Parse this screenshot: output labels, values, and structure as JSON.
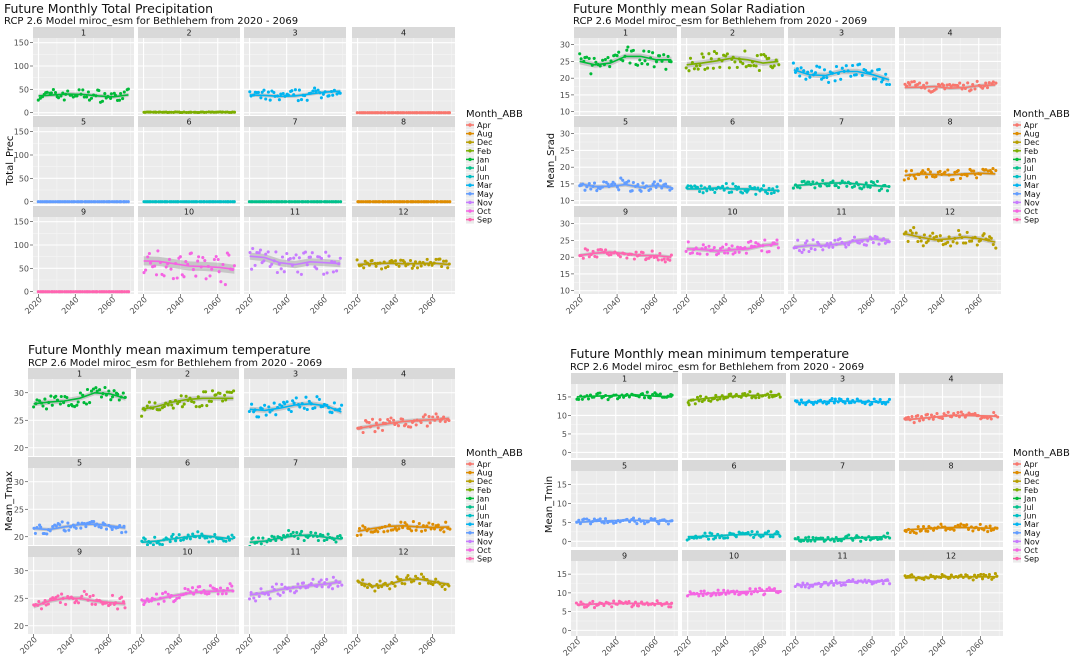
{
  "legend": {
    "title": "Month_ABB",
    "entries": [
      "Apr",
      "Aug",
      "Dec",
      "Feb",
      "Jan",
      "Jul",
      "Jun",
      "Mar",
      "May",
      "Nov",
      "Oct",
      "Sep"
    ]
  },
  "colors": {
    "Apr": "#F8766D",
    "Aug": "#DE8C00",
    "Dec": "#B79F00",
    "Feb": "#7CAE00",
    "Jan": "#00BA38",
    "Jul": "#00C08B",
    "Jun": "#00BFC4",
    "Mar": "#00B4F0",
    "May": "#619CFF",
    "Nov": "#C77CFF",
    "Oct": "#F564E3",
    "Sep": "#FF64B0"
  },
  "panel_months": [
    "Jan",
    "Feb",
    "Mar",
    "Apr",
    "May",
    "Jun",
    "Jul",
    "Aug",
    "Sep",
    "Oct",
    "Nov",
    "Dec"
  ],
  "chart_data": [
    {
      "type": "scatter",
      "title": "Future Monthly Total Precipitation",
      "subtitle": "RCP 2.6 Model miroc_esm for Bethlehem from 2020 - 2069",
      "ylabel": "Total_Prec",
      "facet_labels": [
        "1",
        "2",
        "3",
        "4",
        "5",
        "6",
        "7",
        "8",
        "9",
        "10",
        "11",
        "12"
      ],
      "x_ticks": [
        "2020",
        "2040",
        "2060"
      ],
      "xlim": [
        2017,
        2072
      ],
      "y_ticks": [
        0,
        50,
        100,
        150
      ],
      "ylim": [
        -5,
        160
      ],
      "means": [
        38,
        2,
        40,
        0,
        0,
        0,
        0,
        0,
        0,
        60,
        65,
        58
      ],
      "spreads": [
        12,
        0.6,
        11,
        0,
        0,
        0,
        0,
        0,
        0,
        28,
        22,
        11
      ],
      "trends": [
        [
          36,
          38,
          40,
          39,
          36,
          34,
          38
        ],
        [
          1,
          1,
          1,
          1,
          1,
          1,
          1
        ],
        [
          38,
          37,
          35,
          36,
          40,
          44,
          46
        ],
        [
          0,
          0,
          0,
          0,
          0,
          0,
          0
        ],
        [
          0,
          0,
          0,
          0,
          0,
          0,
          0
        ],
        [
          0,
          0,
          0,
          0,
          0,
          0,
          0
        ],
        [
          0,
          0,
          0,
          0,
          0,
          0,
          0
        ],
        [
          0,
          0,
          0,
          0,
          0,
          0,
          0
        ],
        [
          0,
          0,
          0,
          0,
          0,
          0,
          0
        ],
        [
          66,
          65,
          60,
          55,
          54,
          52,
          48
        ],
        [
          76,
          73,
          62,
          58,
          64,
          62,
          60
        ],
        [
          58,
          60,
          61,
          60,
          60,
          61,
          58
        ]
      ]
    },
    {
      "type": "scatter",
      "title": "Future Monthly mean Solar Radiation",
      "subtitle": "RCP 2.6 Model miroc_esm for Bethlehem from 2020 - 2069",
      "ylabel": "Mean_Srad",
      "facet_labels": [
        "1",
        "2",
        "3",
        "4",
        "5",
        "6",
        "7",
        "8",
        "9",
        "10",
        "11",
        "12"
      ],
      "x_ticks": [
        "2020",
        "2040",
        "2060"
      ],
      "xlim": [
        2017,
        2072
      ],
      "y_ticks": [
        10,
        15,
        20,
        25,
        30
      ],
      "ylim": [
        9,
        32
      ],
      "means": [
        26,
        24.5,
        21.5,
        17.5,
        14.5,
        13.5,
        14.8,
        17.8,
        21,
        23,
        24.5,
        25.5
      ],
      "spreads": [
        2.5,
        2.5,
        2.3,
        1.5,
        1.7,
        1.3,
        1.2,
        1.5,
        1.5,
        1.8,
        1.7,
        2
      ],
      "trends": [
        [
          25,
          24,
          24.5,
          26.5,
          26.5,
          25.5,
          25.5
        ],
        [
          24,
          24.5,
          25.2,
          26,
          25.5,
          24.5,
          25
        ],
        [
          22.5,
          21,
          20.8,
          22,
          22,
          21,
          19.5
        ],
        [
          17.2,
          17.3,
          17.5,
          17,
          17.2,
          17.8,
          18
        ],
        [
          15,
          14.2,
          14.3,
          14.8,
          14,
          14.5,
          14
        ],
        [
          13.5,
          13.5,
          13.8,
          13.5,
          13.5,
          13.2,
          13
        ],
        [
          14.5,
          14.8,
          15.2,
          15.3,
          15,
          14.5,
          14.2
        ],
        [
          17.5,
          18,
          17.8,
          17.7,
          18,
          18.2,
          18
        ],
        [
          20.5,
          21.2,
          21.5,
          21,
          20.5,
          20.5,
          20
        ],
        [
          22.5,
          22.3,
          21.8,
          22.2,
          22.5,
          23.5,
          24
        ],
        [
          23,
          23.5,
          23.5,
          24,
          25,
          25.5,
          25
        ],
        [
          27,
          26,
          25.2,
          25.5,
          26,
          25.5,
          24.5
        ]
      ]
    },
    {
      "type": "scatter",
      "title": "Future Monthly mean maximum temperature",
      "subtitle": "RCP 2.6 Model miroc_esm for Bethlehem from 2020 - 2069",
      "ylabel": "Mean_Tmax",
      "facet_labels": [
        "1",
        "2",
        "3",
        "4",
        "5",
        "6",
        "7",
        "8",
        "9",
        "10",
        "11",
        "12"
      ],
      "x_ticks": [
        "2020",
        "2040",
        "2060"
      ],
      "xlim": [
        2017,
        2072
      ],
      "y_ticks": [
        20,
        25,
        30
      ],
      "ylim": [
        18.5,
        32.5
      ],
      "means": [
        29,
        28,
        27.5,
        24.5,
        22,
        19.8,
        19.8,
        21.8,
        24.8,
        25.5,
        27,
        28
      ],
      "spreads": [
        1.3,
        1.3,
        1.3,
        1.1,
        0.9,
        0.8,
        0.9,
        0.9,
        1.1,
        1,
        1,
        0.9
      ],
      "trends": [
        [
          28,
          28.3,
          28.5,
          29,
          30,
          29.8,
          29
        ],
        [
          27,
          27.5,
          28.3,
          28.8,
          29,
          29,
          29
        ],
        [
          27,
          26.8,
          27.2,
          27.8,
          28,
          27.6,
          26.5
        ],
        [
          23.5,
          24,
          24.4,
          24.8,
          25,
          25.1,
          25.3
        ],
        [
          21.5,
          21.3,
          21.8,
          22.2,
          22.3,
          22,
          21.6
        ],
        [
          19,
          19.2,
          19.6,
          20,
          20.2,
          19.9,
          19.6
        ],
        [
          19,
          19.2,
          19.8,
          20.2,
          20.3,
          19.9,
          19.6
        ],
        [
          21,
          21.5,
          21.9,
          22,
          21.8,
          21.7,
          21.8
        ],
        [
          23.5,
          24.5,
          25,
          25,
          24.5,
          24.2,
          24
        ],
        [
          24.5,
          24.8,
          25.4,
          25.9,
          26.2,
          26.3,
          26.4
        ],
        [
          25.6,
          26,
          26.6,
          27,
          27.3,
          27.6,
          28
        ],
        [
          28,
          27.2,
          27.5,
          28.3,
          28.5,
          28,
          27.5
        ]
      ]
    },
    {
      "type": "scatter",
      "title": "Future Monthly mean minimum temperature",
      "subtitle": "RCP 2.6 Model miroc_esm for Bethlehem from 2020 - 2069",
      "ylabel": "Mean_Tmin",
      "facet_labels": [
        "1",
        "2",
        "3",
        "4",
        "5",
        "6",
        "7",
        "8",
        "9",
        "10",
        "11",
        "12"
      ],
      "x_ticks": [
        "2020",
        "2040",
        "2060"
      ],
      "xlim": [
        2017,
        2072
      ],
      "y_ticks": [
        0,
        5,
        10,
        15
      ],
      "ylim": [
        -1.5,
        18.5
      ],
      "means": [
        15.2,
        15,
        13.8,
        9.5,
        5.3,
        1.5,
        0.8,
        3.5,
        7.2,
        10,
        12.5,
        14.2
      ],
      "spreads": [
        0.8,
        0.9,
        0.7,
        0.9,
        0.8,
        0.8,
        0.8,
        0.9,
        0.9,
        0.8,
        0.7,
        0.7
      ],
      "trends": [
        [
          15,
          15.2,
          15.3,
          15.4,
          15.5,
          15.2,
          15
        ],
        [
          14,
          14.5,
          15,
          15.2,
          15.4,
          15.5,
          15.6
        ],
        [
          13.5,
          13.6,
          13.8,
          13.9,
          13.8,
          13.7,
          13.6
        ],
        [
          8.8,
          9.2,
          9.6,
          10,
          10,
          9.9,
          9.8
        ],
        [
          5,
          5.2,
          5.4,
          5.5,
          5.5,
          5.4,
          5.3
        ],
        [
          1.2,
          1.3,
          1.5,
          1.7,
          1.8,
          1.8,
          1.8
        ],
        [
          0.5,
          0.4,
          0.5,
          0.7,
          0.9,
          1.1,
          1.2
        ],
        [
          3,
          3.2,
          3.5,
          3.6,
          3.6,
          3.5,
          3.4
        ],
        [
          6.8,
          7,
          7.2,
          7.2,
          7.2,
          7.1,
          7
        ],
        [
          9.5,
          9.8,
          10,
          10.2,
          10.4,
          10.5,
          10.5
        ],
        [
          12,
          12.2,
          12.5,
          12.8,
          13,
          13.1,
          13.2
        ],
        [
          14,
          14.1,
          14.2,
          14.3,
          14.3,
          14.3,
          14.3
        ]
      ]
    }
  ]
}
